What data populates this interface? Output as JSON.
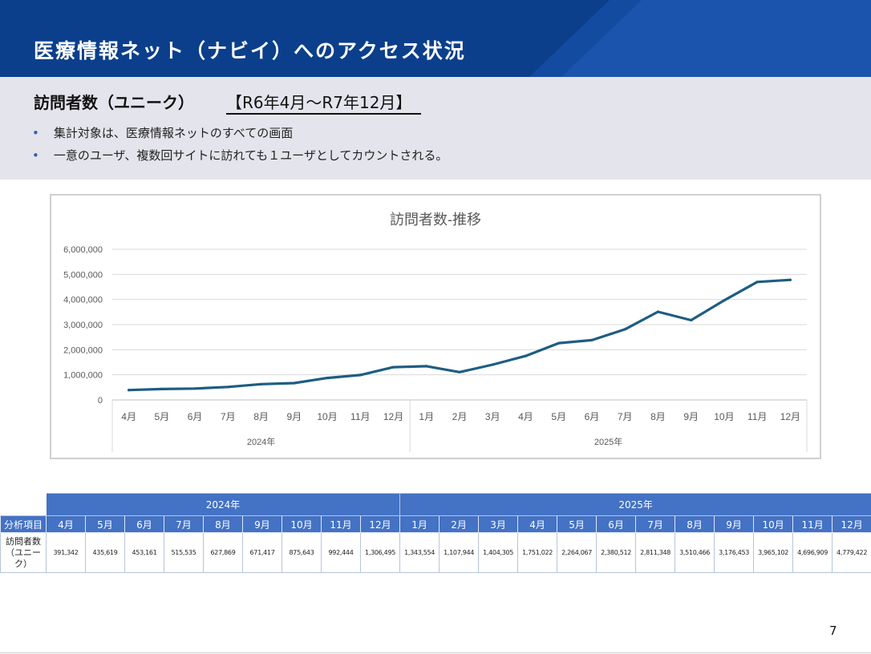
{
  "header": {
    "title": "医療情報ネット（ナビイ）へのアクセス状況"
  },
  "intro": {
    "subtitle": "訪問者数（ユニーク）",
    "period": "【R6年4月～R7年12月】",
    "bullets": [
      "集計対象は、医療情報ネットのすべての画面",
      "一意のユーザ、複数回サイトに訪れても１ユーザとしてカウントされる。"
    ]
  },
  "colors": {
    "header": "#0b3f8c",
    "line": "#1e5d82",
    "table_header": "#4472c4",
    "intro_bg": "#e4e4ec"
  },
  "chart_data": {
    "type": "line",
    "title": "訪問者数-推移",
    "y_ticks": [
      "6,000,000",
      "5,000,000",
      "4,000,000",
      "3,000,000",
      "2,000,000",
      "1,000,000",
      "0"
    ],
    "ylim": [
      0,
      6000000
    ],
    "groups": [
      {
        "label": "2024年",
        "months": [
          "4月",
          "5月",
          "6月",
          "7月",
          "8月",
          "9月",
          "10月",
          "11月",
          "12月"
        ]
      },
      {
        "label": "2025年",
        "months": [
          "1月",
          "2月",
          "3月",
          "4月",
          "5月",
          "6月",
          "7月",
          "8月",
          "9月",
          "10月",
          "11月",
          "12月"
        ]
      }
    ],
    "series": [
      {
        "name": "訪問者数（ユニーク）",
        "values": [
          391342,
          435619,
          453161,
          515535,
          627869,
          671417,
          875643,
          992444,
          1306495,
          1343554,
          1107944,
          1404305,
          1751022,
          2264067,
          2380512,
          2811348,
          3510466,
          3176453,
          3965102,
          4696909,
          4779422
        ]
      }
    ]
  },
  "table": {
    "corner_label": "分析項目",
    "row_label": "訪問者数（ユニーク）",
    "years": [
      "2024年",
      "2025年"
    ],
    "months": [
      "4月",
      "5月",
      "6月",
      "7月",
      "8月",
      "9月",
      "10月",
      "11月",
      "12月",
      "1月",
      "2月",
      "3月",
      "4月",
      "5月",
      "6月",
      "7月",
      "8月",
      "9月",
      "10月",
      "11月",
      "12月"
    ],
    "values": [
      "391,342",
      "435,619",
      "453,161",
      "515,535",
      "627,869",
      "671,417",
      "875,643",
      "992,444",
      "1,306,495",
      "1,343,554",
      "1,107,944",
      "1,404,305",
      "1,751,022",
      "2,264,067",
      "2,380,512",
      "2,811,348",
      "3,510,466",
      "3,176,453",
      "3,965,102",
      "4,696,909",
      "4,779,422"
    ]
  },
  "page_number": "7"
}
